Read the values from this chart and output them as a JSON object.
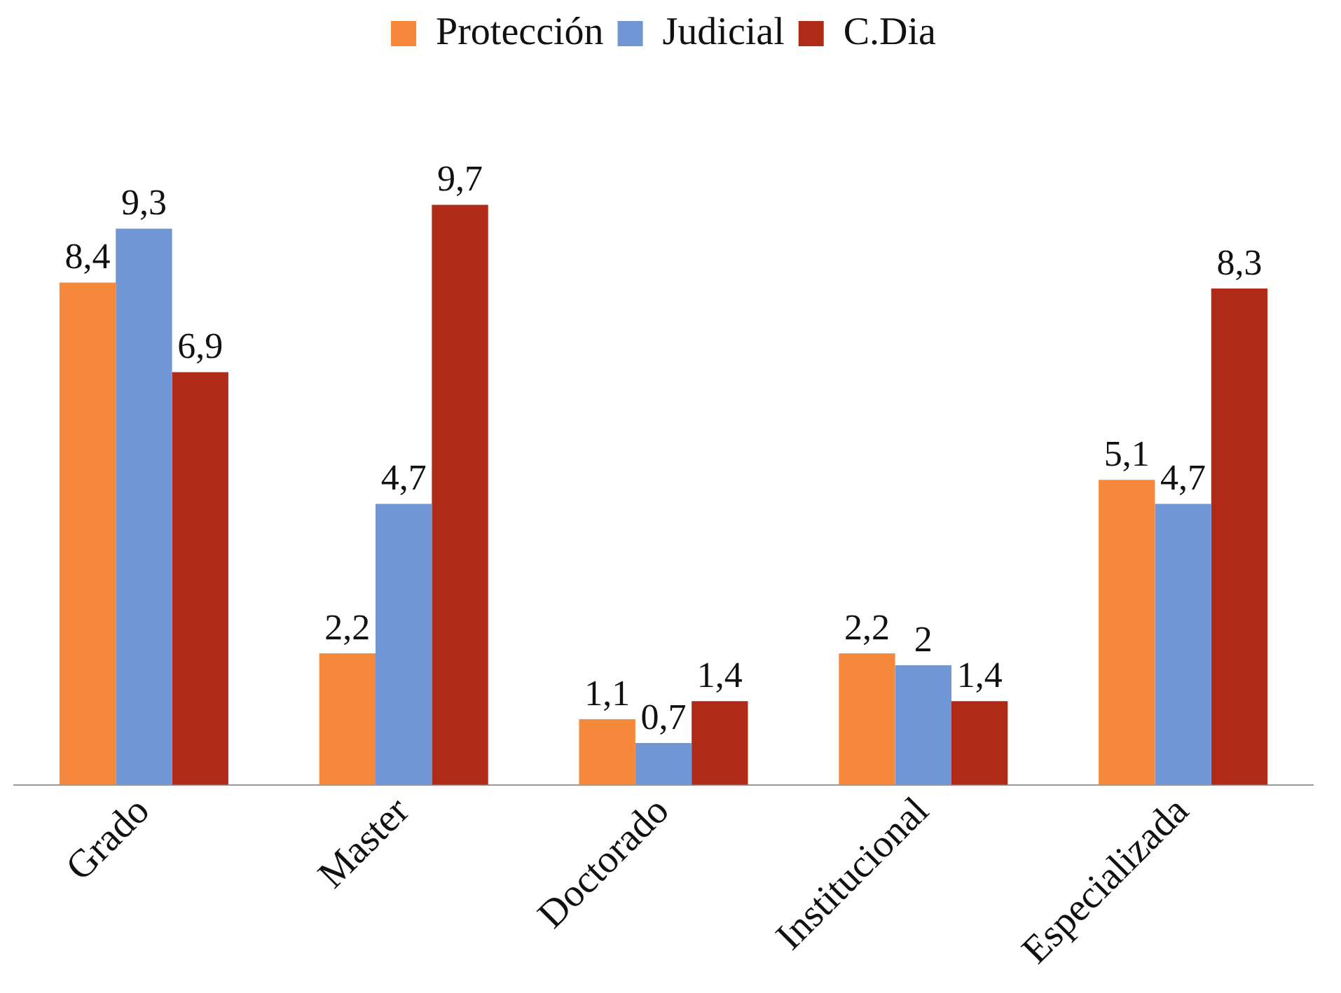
{
  "chart_data": {
    "type": "bar",
    "categories": [
      "Grado",
      "Master",
      "Doctorado",
      "Institucional",
      "Especializada"
    ],
    "series": [
      {
        "name": "Protección",
        "color": "#f5883a",
        "values": [
          8.4,
          2.2,
          1.1,
          2.2,
          5.1
        ],
        "value_labels": [
          "8,4",
          "2,2",
          "1,1",
          "2,2",
          "5,1"
        ]
      },
      {
        "name": "Judicial",
        "color": "#7096d6",
        "values": [
          9.3,
          4.7,
          0.7,
          2,
          4.7
        ],
        "value_labels": [
          "9,3",
          "4,7",
          "0,7",
          "2",
          "4,7"
        ]
      },
      {
        "name": "C.Dia",
        "color": "#b02a18",
        "values": [
          6.9,
          9.7,
          1.4,
          1.4,
          8.3
        ],
        "value_labels": [
          "6,9",
          "9,7",
          "1,4",
          "1,4",
          "8,3"
        ]
      }
    ],
    "legend": "top",
    "grid": false
  }
}
